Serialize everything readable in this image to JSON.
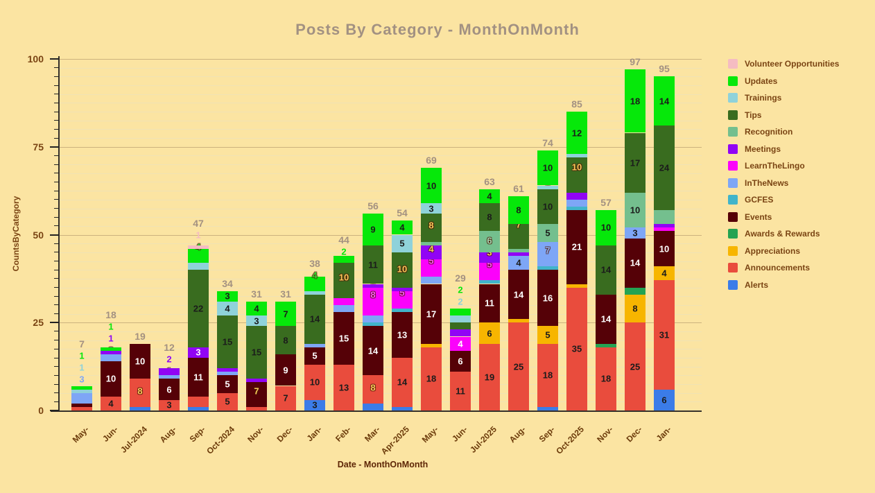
{
  "title": "Posts By Category - MonthOnMonth",
  "chart_data": {
    "type": "bar",
    "stacked": true,
    "title": "Posts By Category - MonthOnMonth",
    "xlabel": "Date - MonthOnMonth",
    "ylabel": "CountsByCategory",
    "ylim": [
      0,
      100
    ],
    "yticks": [
      0,
      25,
      50,
      75,
      100
    ],
    "grid": true,
    "legend_position": "right",
    "categories": [
      "May-",
      "Jun-",
      "Jul-2024",
      "Aug-",
      "Sep-",
      "Oct-2024",
      "Nov-",
      "Dec-",
      "Jan-",
      "Feb-",
      "Mar-",
      "Apr-2025",
      "May-",
      "Jun-",
      "Jul-2025",
      "Aug-",
      "Sep-",
      "Oct-2025",
      "Nov-",
      "Dec-",
      "Jan-"
    ],
    "totals": [
      7,
      18,
      19,
      12,
      47,
      34,
      31,
      31,
      38,
      44,
      56,
      54,
      69,
      29,
      63,
      61,
      74,
      85,
      57,
      97,
      95
    ],
    "series": [
      {
        "name": "Volunteer Opportunities",
        "color": "#f5bcc2",
        "tint": "#f5bcc2",
        "values": [
          0,
          0,
          0,
          0,
          1,
          0,
          0,
          0,
          0,
          0,
          0,
          0,
          0,
          0,
          0,
          0,
          0,
          0,
          0,
          0,
          0
        ]
      },
      {
        "name": "Updates",
        "color": "#06e80a",
        "tint": "#2edb2e",
        "values": [
          1,
          1,
          0,
          0,
          4,
          3,
          4,
          7,
          4,
          2,
          9,
          4,
          10,
          2,
          4,
          8,
          10,
          12,
          10,
          18,
          14
        ]
      },
      {
        "name": "Trainings",
        "color": "#8fd2da",
        "tint": "#9adce2",
        "values": [
          1,
          0,
          0,
          0,
          2,
          4,
          3,
          0,
          1,
          0,
          0,
          5,
          3,
          2,
          0,
          0,
          1,
          1,
          0,
          0,
          0
        ]
      },
      {
        "name": "Tips",
        "color": "#396c1f",
        "tint": "#f8cd5a",
        "values": [
          0,
          0,
          0,
          0,
          22,
          15,
          15,
          8,
          14,
          10,
          11,
          10,
          8,
          2,
          8,
          7,
          10,
          10,
          14,
          17,
          24
        ]
      },
      {
        "name": "Recognition",
        "color": "#74bf8e",
        "tint": "#a5d8b4",
        "values": [
          0,
          0,
          0,
          0,
          0,
          0,
          0,
          0,
          0,
          0,
          0,
          0,
          1,
          0,
          6,
          1,
          5,
          0,
          0,
          10,
          4
        ]
      },
      {
        "name": "Meetings",
        "color": "#9104f5",
        "tint": "#f8cd5a",
        "values": [
          0,
          1,
          0,
          2,
          3,
          1,
          1,
          0,
          0,
          0,
          1,
          1,
          4,
          2,
          3,
          1,
          0,
          2,
          0,
          0,
          1
        ]
      },
      {
        "name": "LearnTheLingo",
        "color": "#fb02fb",
        "tint": "#fb5bfb",
        "values": [
          0,
          0,
          0,
          0,
          0,
          0,
          0,
          0,
          0,
          2,
          8,
          5,
          5,
          4,
          5,
          0,
          0,
          0,
          0,
          0,
          1
        ]
      },
      {
        "name": "InTheNews",
        "color": "#7ea6f6",
        "tint": "#93b5f8",
        "values": [
          3,
          2,
          0,
          1,
          0,
          1,
          0,
          0,
          1,
          2,
          2,
          0,
          2,
          0,
          0,
          4,
          7,
          2,
          0,
          3,
          0
        ]
      },
      {
        "name": "GCFES",
        "color": "#41b4ca",
        "tint": "#f8cd5a",
        "values": [
          0,
          0,
          0,
          0,
          0,
          0,
          0,
          0,
          0,
          0,
          1,
          1,
          0,
          0,
          1,
          0,
          1,
          1,
          0,
          0,
          0
        ]
      },
      {
        "name": "Events",
        "color": "#550107",
        "tint": "#f8cd5a",
        "values": [
          1,
          10,
          10,
          6,
          11,
          5,
          7,
          9,
          5,
          15,
          14,
          13,
          17,
          6,
          11,
          14,
          16,
          21,
          14,
          14,
          10
        ]
      },
      {
        "name": "Awards & Rewards",
        "color": "#24a352",
        "tint": "#f8cd5a",
        "values": [
          0,
          0,
          0,
          0,
          0,
          0,
          0,
          0,
          0,
          0,
          0,
          0,
          0,
          0,
          0,
          0,
          0,
          0,
          1,
          2,
          0
        ]
      },
      {
        "name": "Appreciations",
        "color": "#f7b500",
        "tint": "#f8cd5a",
        "values": [
          0,
          0,
          0,
          0,
          0,
          0,
          0,
          0,
          0,
          0,
          0,
          0,
          1,
          0,
          6,
          1,
          5,
          1,
          0,
          8,
          4
        ]
      },
      {
        "name": "Announcements",
        "color": "#e94c3d",
        "tint": "#f8cd5a",
        "values": [
          1,
          4,
          8,
          3,
          3,
          5,
          1,
          7,
          10,
          13,
          8,
          14,
          18,
          11,
          19,
          25,
          18,
          35,
          18,
          25,
          31
        ]
      },
      {
        "name": "Alerts",
        "color": "#3b7ce8",
        "tint": "#a9c9f7",
        "values": [
          0,
          0,
          1,
          0,
          1,
          0,
          0,
          0,
          3,
          0,
          2,
          1,
          0,
          0,
          0,
          0,
          1,
          0,
          0,
          0,
          6
        ]
      }
    ]
  },
  "colors": {
    "background": "#fbe4a2",
    "grid_minor": "#f0e2b4",
    "grid_major": "#ccb27e",
    "axis": "#35302a",
    "tick_text": "#7a4413",
    "month_text": "#6b3a0a",
    "xlabel_text": "#5d2505",
    "title_text": "#a29182",
    "total_text": "#a39181"
  }
}
